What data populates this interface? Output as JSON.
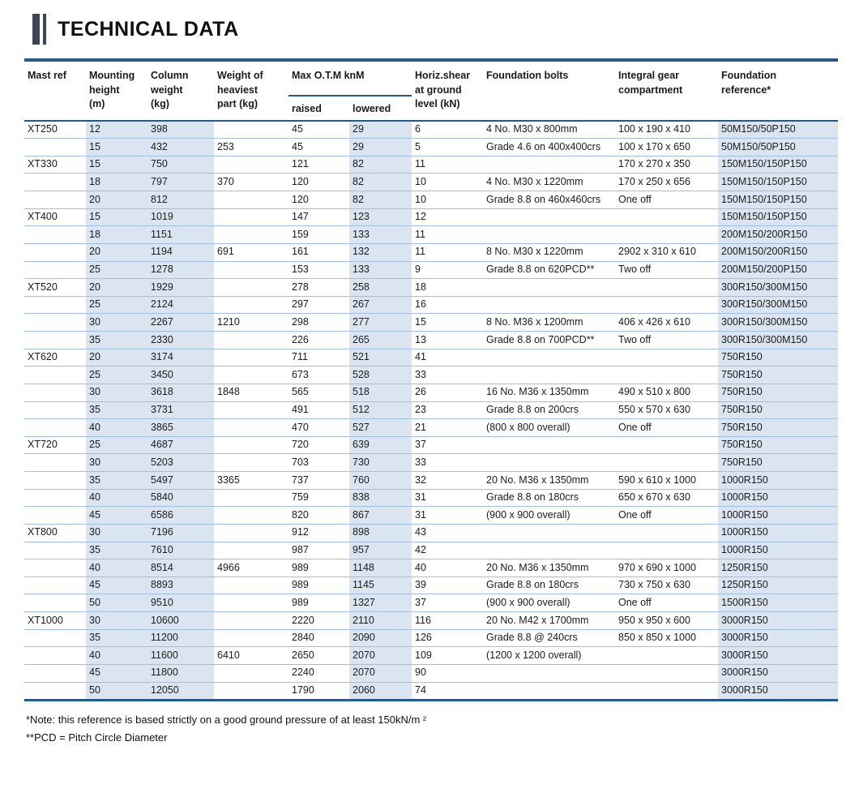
{
  "title": "TECHNICAL DATA",
  "colors": {
    "rule": "#235a8b",
    "row_line": "#a3c0da",
    "column_shade": "#dbe5f1",
    "accent_bar": "#3d4653"
  },
  "table": {
    "headers": {
      "mast_ref": "Mast ref",
      "mounting_height": "Mounting\nheight\n(m)",
      "column_weight": "Column\nweight\n(kg)",
      "heaviest_part": "Weight of\nheaviest\npart (kg)",
      "max_otm": "Max O.T.M knM",
      "raised": "raised",
      "lowered": "lowered",
      "horiz_shear": "Horiz.shear\nat ground\nlevel (kN)",
      "foundation_bolts": "Foundation bolts",
      "integral_gear": "Integral gear\ncompartment",
      "foundation_reference": "Foundation\nreference*"
    },
    "rows": [
      [
        "XT250",
        "12",
        "398",
        "",
        "45",
        "29",
        "6",
        "4 No. M30 x 800mm",
        "100 x 190 x 410",
        "50M150/50P150"
      ],
      [
        "",
        "15",
        "432",
        "253",
        "45",
        "29",
        "5",
        "Grade 4.6 on 400x400crs",
        "100 x 170 x 650",
        "50M150/50P150"
      ],
      [
        "XT330",
        "15",
        "750",
        "",
        "121",
        "82",
        "11",
        "",
        "170 x 270 x 350",
        "150M150/150P150"
      ],
      [
        "",
        "18",
        "797",
        "370",
        "120",
        "82",
        "10",
        "4 No. M30 x 1220mm",
        "170 x 250 x 656",
        "150M150/150P150"
      ],
      [
        "",
        "20",
        "812",
        "",
        "120",
        "82",
        "10",
        "Grade 8.8 on 460x460crs",
        "One off",
        "150M150/150P150"
      ],
      [
        "XT400",
        "15",
        "1019",
        "",
        "147",
        "123",
        "12",
        "",
        "",
        "150M150/150P150"
      ],
      [
        "",
        "18",
        "1151",
        "",
        "159",
        "133",
        "11",
        "",
        "",
        "200M150/200R150"
      ],
      [
        "",
        "20",
        "1194",
        "691",
        "161",
        "132",
        "11",
        "8 No. M30 x 1220mm",
        "2902 x 310 x 610",
        "200M150/200R150"
      ],
      [
        "",
        "25",
        "1278",
        "",
        "153",
        "133",
        "9",
        "Grade 8.8 on 620PCD**",
        "Two off",
        "200M150/200P150"
      ],
      [
        "XT520",
        "20",
        "1929",
        "",
        "278",
        "258",
        "18",
        "",
        "",
        "300R150/300M150"
      ],
      [
        "",
        "25",
        "2124",
        "",
        "297",
        "267",
        "16",
        "",
        "",
        "300R150/300M150"
      ],
      [
        "",
        "30",
        "2267",
        "1210",
        "298",
        "277",
        "15",
        "8 No. M36 x 1200mm",
        "406 x 426 x 610",
        "300R150/300M150"
      ],
      [
        "",
        "35",
        "2330",
        "",
        "226",
        "265",
        "13",
        "Grade 8.8 on 700PCD**",
        "Two off",
        "300R150/300M150"
      ],
      [
        "XT620",
        "20",
        "3174",
        "",
        "711",
        "521",
        "41",
        "",
        "",
        "750R150"
      ],
      [
        "",
        "25",
        "3450",
        "",
        "673",
        "528",
        "33",
        "",
        "",
        "750R150"
      ],
      [
        "",
        "30",
        "3618",
        "1848",
        "565",
        "518",
        "26",
        "16 No. M36 x 1350mm",
        "490 x 510 x 800",
        "750R150"
      ],
      [
        "",
        "35",
        "3731",
        "",
        "491",
        "512",
        "23",
        "Grade 8.8 on 200crs",
        "550 x 570 x 630",
        "750R150"
      ],
      [
        "",
        "40",
        "3865",
        "",
        "470",
        "527",
        "21",
        "(800 x 800 overall)",
        "One off",
        "750R150"
      ],
      [
        "XT720",
        "25",
        "4687",
        "",
        "720",
        "639",
        "37",
        "",
        "",
        "750R150"
      ],
      [
        "",
        "30",
        "5203",
        "",
        "703",
        "730",
        "33",
        "",
        "",
        "750R150"
      ],
      [
        "",
        "35",
        "5497",
        "3365",
        "737",
        "760",
        "32",
        "20 No. M36 x 1350mm",
        "590 x 610 x 1000",
        "1000R150"
      ],
      [
        "",
        "40",
        "5840",
        "",
        "759",
        "838",
        "31",
        "Grade 8.8 on 180crs",
        "650 x 670 x 630",
        "1000R150"
      ],
      [
        "",
        "45",
        "6586",
        "",
        "820",
        "867",
        "31",
        "(900 x 900 overall)",
        "One off",
        "1000R150"
      ],
      [
        "XT800",
        "30",
        "7196",
        "",
        "912",
        "898",
        "43",
        "",
        "",
        "1000R150"
      ],
      [
        "",
        "35",
        "7610",
        "",
        "987",
        "957",
        "42",
        "",
        "",
        "1000R150"
      ],
      [
        "",
        "40",
        "8514",
        "4966",
        "989",
        "1148",
        "40",
        "20 No. M36 x 1350mm",
        "970 x 690 x 1000",
        "1250R150"
      ],
      [
        "",
        "45",
        "8893",
        "",
        "989",
        "1145",
        "39",
        "Grade 8.8 on 180crs",
        "730 x 750 x 630",
        "1250R150"
      ],
      [
        "",
        "50",
        "9510",
        "",
        "989",
        "1327",
        "37",
        "(900 x 900 overall)",
        "One off",
        "1500R150"
      ],
      [
        "XT1000",
        "30",
        "10600",
        "",
        "2220",
        "2110",
        "116",
        "20 No. M42 x 1700mm",
        "950 x 950 x 600",
        "3000R150"
      ],
      [
        "",
        "35",
        "11200",
        "",
        "2840",
        "2090",
        "126",
        "Grade 8.8 @ 240crs",
        "850 x 850 x 1000",
        "3000R150"
      ],
      [
        "",
        "40",
        "11600",
        "6410",
        "2650",
        "2070",
        "109",
        "(1200 x 1200 overall)",
        "",
        "3000R150"
      ],
      [
        "",
        "45",
        "11800",
        "",
        "2240",
        "2070",
        "90",
        "",
        "",
        "3000R150"
      ],
      [
        "",
        "50",
        "12050",
        "",
        "1790",
        "2060",
        "74",
        "",
        "",
        "3000R150"
      ]
    ]
  },
  "notes": {
    "note1": "*Note: this reference is based strictly on a good ground pressure of at least 150kN/m ²",
    "note2": "**PCD = Pitch Circle Diameter"
  }
}
